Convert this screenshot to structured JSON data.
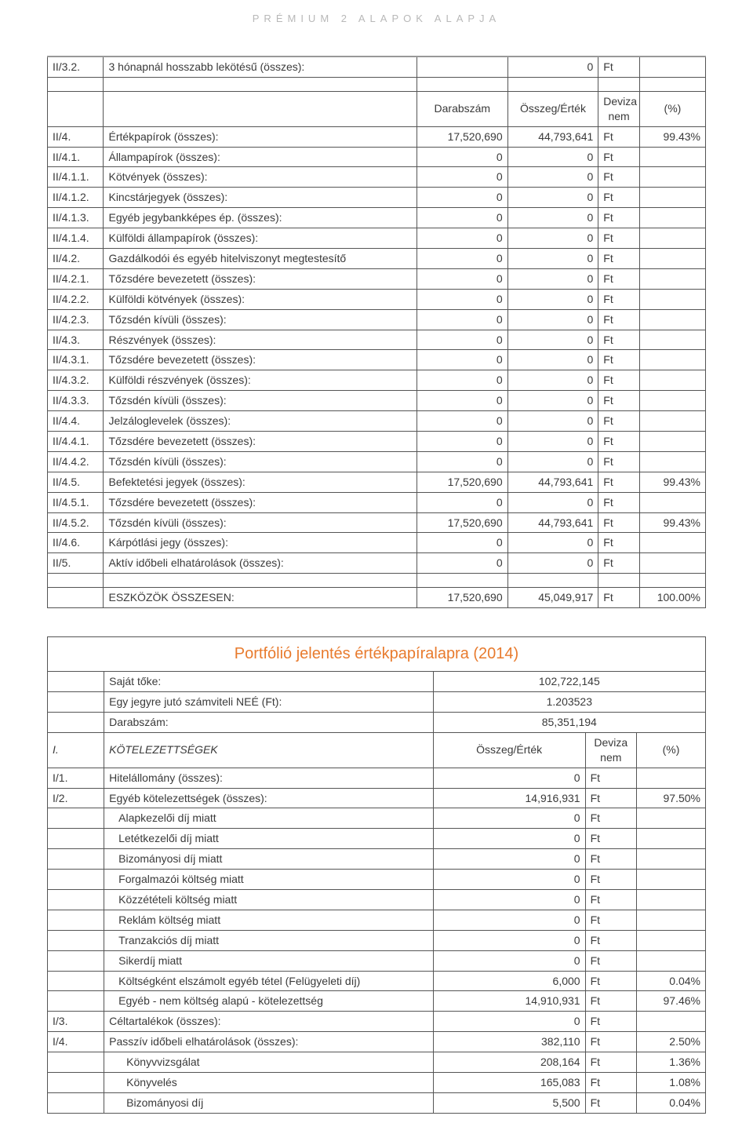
{
  "page_header": "PRÉMIUM 2 ALAPOK ALAPJA",
  "colors": {
    "text": "#3a3a3a",
    "header_gray": "#b8b8b8",
    "accent_orange": "#e87b2e",
    "border": "#555555"
  },
  "table1": {
    "header_row": {
      "c3": "Darabszám",
      "c4": "Összeg/Érték",
      "c5": "Deviza nem",
      "c6": "(%)"
    },
    "rows": [
      {
        "code": "II/3.2.",
        "desc": "3 hónapnál hosszabb lekötésű (összes):",
        "v1": "",
        "v2": "0",
        "ccy": "Ft",
        "pct": ""
      },
      {
        "spacer": true
      },
      {
        "header": true
      },
      {
        "code": "II/4.",
        "desc": "Értékpapírok (összes):",
        "v1": "17,520,690",
        "v2": "44,793,641",
        "ccy": "Ft",
        "pct": "99.43%"
      },
      {
        "code": "II/4.1.",
        "desc": "Állampapírok (összes):",
        "v1": "0",
        "v2": "0",
        "ccy": "Ft",
        "pct": ""
      },
      {
        "code": "II/4.1.1.",
        "desc": "Kötvények (összes):",
        "v1": "0",
        "v2": "0",
        "ccy": "Ft",
        "pct": ""
      },
      {
        "code": "II/4.1.2.",
        "desc": "Kincstárjegyek (összes):",
        "v1": "0",
        "v2": "0",
        "ccy": "Ft",
        "pct": ""
      },
      {
        "code": "II/4.1.3.",
        "desc": "Egyéb jegybankképes ép. (összes):",
        "v1": "0",
        "v2": "0",
        "ccy": "Ft",
        "pct": ""
      },
      {
        "code": "II/4.1.4.",
        "desc": "Külföldi állampapírok (összes):",
        "v1": "0",
        "v2": "0",
        "ccy": "Ft",
        "pct": ""
      },
      {
        "code": "II/4.2.",
        "desc": "Gazdálkodói és egyéb hitelviszonyt megtestesítő",
        "v1": "0",
        "v2": "0",
        "ccy": "Ft",
        "pct": ""
      },
      {
        "code": "II/4.2.1.",
        "desc": "Tőzsdére bevezetett (összes):",
        "v1": "0",
        "v2": "0",
        "ccy": "Ft",
        "pct": ""
      },
      {
        "code": "II/4.2.2.",
        "desc": "Külföldi kötvények (összes):",
        "v1": "0",
        "v2": "0",
        "ccy": "Ft",
        "pct": ""
      },
      {
        "code": "II/4.2.3.",
        "desc": "Tőzsdén kívüli (összes):",
        "v1": "0",
        "v2": "0",
        "ccy": "Ft",
        "pct": ""
      },
      {
        "code": "II/4.3.",
        "desc": "Részvények (összes):",
        "v1": "0",
        "v2": "0",
        "ccy": "Ft",
        "pct": ""
      },
      {
        "code": "II/4.3.1.",
        "desc": "Tőzsdére bevezetett (összes):",
        "v1": "0",
        "v2": "0",
        "ccy": "Ft",
        "pct": ""
      },
      {
        "code": "II/4.3.2.",
        "desc": "Külföldi részvények (összes):",
        "v1": "0",
        "v2": "0",
        "ccy": "Ft",
        "pct": ""
      },
      {
        "code": "II/4.3.3.",
        "desc": "Tőzsdén kívüli (összes):",
        "v1": "0",
        "v2": "0",
        "ccy": "Ft",
        "pct": ""
      },
      {
        "code": "II/4.4.",
        "desc": "Jelzáloglevelek (összes):",
        "v1": "0",
        "v2": "0",
        "ccy": "Ft",
        "pct": ""
      },
      {
        "code": "II/4.4.1.",
        "desc": "Tőzsdére bevezetett (összes):",
        "v1": "0",
        "v2": "0",
        "ccy": "Ft",
        "pct": ""
      },
      {
        "code": "II/4.4.2.",
        "desc": "Tőzsdén kívüli (összes):",
        "v1": "0",
        "v2": "0",
        "ccy": "Ft",
        "pct": ""
      },
      {
        "code": "II/4.5.",
        "desc": "Befektetési jegyek (összes):",
        "v1": "17,520,690",
        "v2": "44,793,641",
        "ccy": "Ft",
        "pct": "99.43%"
      },
      {
        "code": "II/4.5.1.",
        "desc": "Tőzsdére bevezetett (összes):",
        "v1": "0",
        "v2": "0",
        "ccy": "Ft",
        "pct": ""
      },
      {
        "code": "II/4.5.2.",
        "desc": "Tőzsdén kívüli (összes):",
        "v1": "17,520,690",
        "v2": "44,793,641",
        "ccy": "Ft",
        "pct": "99.43%"
      },
      {
        "code": "II/4.6.",
        "desc": "Kárpótlási jegy (összes):",
        "v1": "0",
        "v2": "0",
        "ccy": "Ft",
        "pct": ""
      },
      {
        "code": "II/5.",
        "desc": "Aktív időbeli elhatárolások (összes):",
        "v1": "0",
        "v2": "0",
        "ccy": "Ft",
        "pct": ""
      },
      {
        "spacer": true
      },
      {
        "code": "",
        "desc": "ESZKÖZÖK ÖSSZESEN:",
        "v1": "17,520,690",
        "v2": "45,049,917",
        "ccy": "Ft",
        "pct": "100.00%"
      }
    ]
  },
  "table2": {
    "title": "Portfólió jelentés értékpapíralapra (2014)",
    "summary": [
      {
        "label": "Saját tőke:",
        "val": "102,722,145"
      },
      {
        "label": "Egy jegyre jutó számviteli NEÉ (Ft):",
        "val": "1.203523"
      },
      {
        "label": "Darabszám:",
        "val": "85,351,194"
      }
    ],
    "header_row": {
      "c1": "I.",
      "c2": "KÖTELEZETTSÉGEK",
      "c3": "Összeg/Érték",
      "c4": "Deviza nem",
      "c5": "(%)"
    },
    "rows": [
      {
        "code": "I/1.",
        "desc": "Hitelállomány (összes):",
        "val": "0",
        "ccy": "Ft",
        "pct": ""
      },
      {
        "code": "I/2.",
        "desc": "Egyéb kötelezettségek (összes):",
        "val": "14,916,931",
        "ccy": "Ft",
        "pct": "97.50%"
      },
      {
        "code": "",
        "desc": "Alapkezelői díj miatt",
        "val": "0",
        "ccy": "Ft",
        "pct": "",
        "indent": 1
      },
      {
        "code": "",
        "desc": "Letétkezelői díj miatt",
        "val": "0",
        "ccy": "Ft",
        "pct": "",
        "indent": 1
      },
      {
        "code": "",
        "desc": "Bizományosi díj miatt",
        "val": "0",
        "ccy": "Ft",
        "pct": "",
        "indent": 1
      },
      {
        "code": "",
        "desc": "Forgalmazói költség miatt",
        "val": "0",
        "ccy": "Ft",
        "pct": "",
        "indent": 1
      },
      {
        "code": "",
        "desc": "Közzétételi költség miatt",
        "val": "0",
        "ccy": "Ft",
        "pct": "",
        "indent": 1
      },
      {
        "code": "",
        "desc": "Reklám költség miatt",
        "val": "0",
        "ccy": "Ft",
        "pct": "",
        "indent": 1
      },
      {
        "code": "",
        "desc": "Tranzakciós díj miatt",
        "val": "0",
        "ccy": "Ft",
        "pct": "",
        "indent": 1
      },
      {
        "code": "",
        "desc": "Sikerdíj miatt",
        "val": "0",
        "ccy": "Ft",
        "pct": "",
        "indent": 1
      },
      {
        "code": "",
        "desc": "Költségként elszámolt egyéb tétel (Felügyeleti díj)",
        "val": "6,000",
        "ccy": "Ft",
        "pct": "0.04%",
        "indent": 1
      },
      {
        "code": "",
        "desc": "Egyéb - nem költség alapú - kötelezettség",
        "val": "14,910,931",
        "ccy": "Ft",
        "pct": "97.46%",
        "indent": 1
      },
      {
        "code": "I/3.",
        "desc": "Céltartalékok (összes):",
        "val": "0",
        "ccy": "Ft",
        "pct": ""
      },
      {
        "code": "I/4.",
        "desc": "Passzív időbeli elhatárolások (összes):",
        "val": "382,110",
        "ccy": "Ft",
        "pct": "2.50%"
      },
      {
        "code": "",
        "desc": "Könyvvizsgálat",
        "val": "208,164",
        "ccy": "Ft",
        "pct": "1.36%",
        "indent": 2
      },
      {
        "code": "",
        "desc": "Könyvelés",
        "val": "165,083",
        "ccy": "Ft",
        "pct": "1.08%",
        "indent": 2
      },
      {
        "code": "",
        "desc": "Bizományosi díj",
        "val": "5,500",
        "ccy": "Ft",
        "pct": "0.04%",
        "indent": 2
      }
    ]
  }
}
